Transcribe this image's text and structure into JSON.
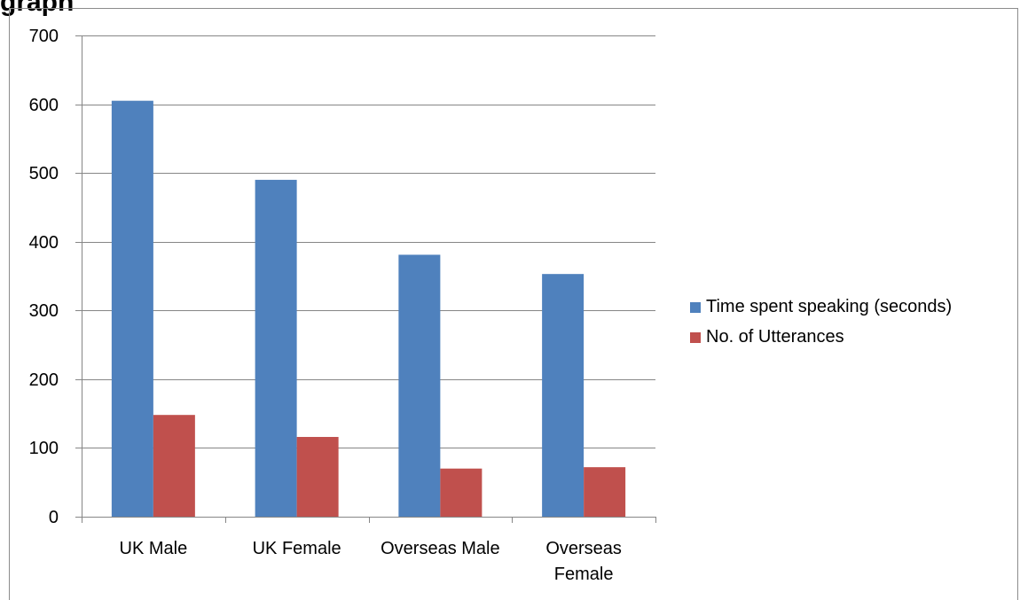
{
  "page": {
    "heading": "graph"
  },
  "chart_data": {
    "type": "bar",
    "title": "",
    "xlabel": "",
    "ylabel": "",
    "categories": [
      "UK Male",
      "UK Female",
      "Overseas Male",
      "Overseas Female"
    ],
    "series": [
      {
        "name": "Time spent speaking (seconds)",
        "color": "#4f81bd",
        "values": [
          605,
          490,
          381,
          353
        ]
      },
      {
        "name": "No. of Utterances",
        "color": "#c0504d",
        "values": [
          148,
          116,
          70,
          72
        ]
      }
    ],
    "ylim": [
      0,
      700
    ],
    "yticks": [
      "0",
      "100",
      "200",
      "300",
      "400",
      "500",
      "600",
      "700"
    ],
    "grid": true,
    "legend_position": "right"
  }
}
